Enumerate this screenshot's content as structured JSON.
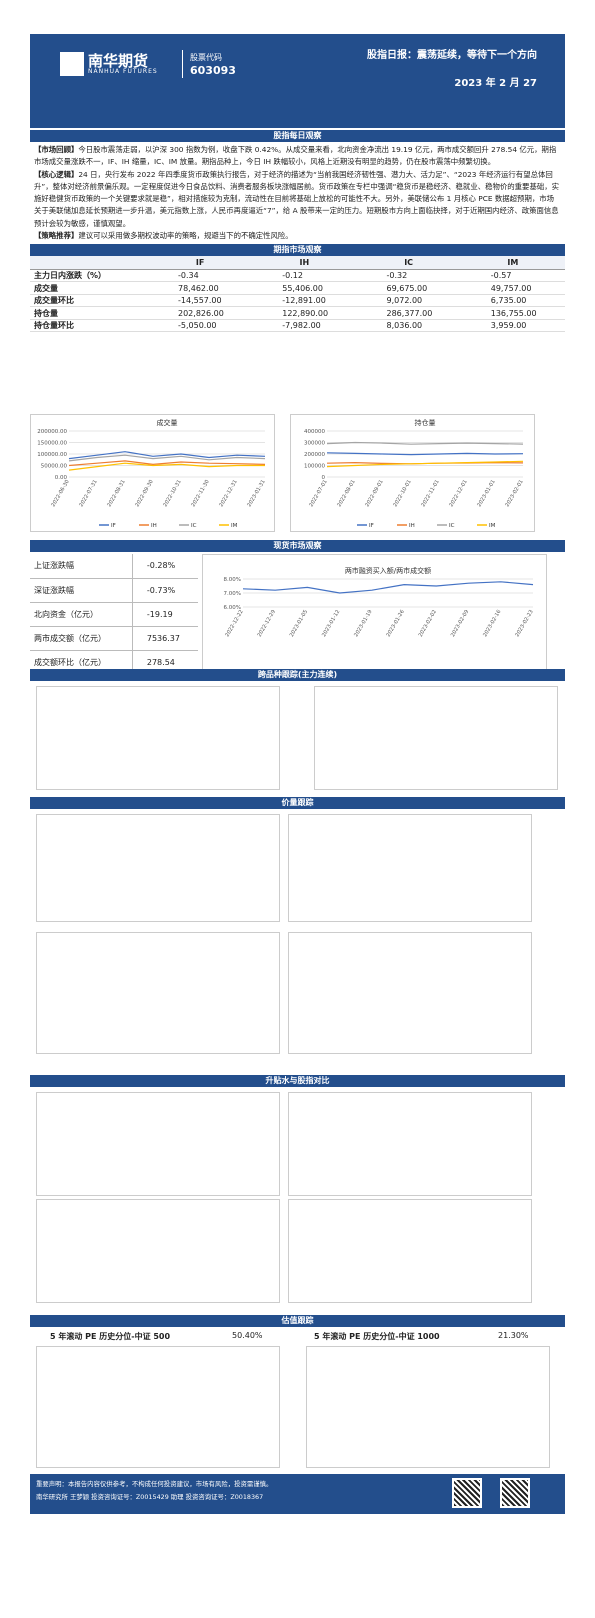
{
  "header": {
    "company_cn": "南华期货",
    "company_en": "NANHUA FUTURES",
    "stock_code_label": "股票代码",
    "stock_code": "603093",
    "report_title": "股指日报：震荡延续，等待下一个方向",
    "report_date": "2023 年 2 月 27"
  },
  "sections": {
    "daily": "股指每日观察",
    "futures": "期指市场观察",
    "spot": "现货市场观察",
    "spread": "跨品种跟踪(主力连续)",
    "volume": "价量跟踪",
    "basis": "升贴水与股指对比",
    "valuation": "估值跟踪"
  },
  "daily": {
    "review_tag": "【市场回顾】",
    "review_text": "今日股市震荡走弱，以沪深 300 指数为例，收盘下跌 0.42%。从成交量来看，北向资金净流出 19.19 亿元，两市成交额回升 278.54 亿元，期指市场成交量涨跌不一，IF、IH 缩量，IC、IM 放量。期指品种上，今日 IH 跌幅较小，风格上近期没有明显的趋势，仍在股市震荡中频繁切换。",
    "core_tag": "【核心逻辑】",
    "core_text": "24 日，央行发布 2022 年四季度货币政策执行报告，对于经济的描述为“当前我国经济韧性强、潜力大、活力足”、“2023 年经济运行有望总体回升”，整体对经济前景偏乐观。一定程度促进今日食品饮料、消费者服务板块涨幅居前。货币政策在专栏中强调“稳货币是稳经济、稳就业、稳物价的重要基础，实施好稳健货币政策的一个关键要求就是稳”，相对措施较为克制，流动性在目前将基础上放松的可能性不大。另外，美联储公布 1 月核心 PCE 数据超预期，市场关于美联储加息延长预期进一步升温，美元指数上涨，人民币再度逼近“7”，给 A 股带来一定的压力。短期股市方向上面临抉择，对于近期国内经济、政策面信息预计会较为敏感，谨慎观望。",
    "strategy_tag": "【策略推荐】",
    "strategy_text": "建议可以采用做多期权波动率的策略，规避当下的不确定性风险。"
  },
  "futures_table": {
    "columns": [
      "",
      "IF",
      "IH",
      "IC",
      "IM"
    ],
    "rows": [
      {
        "label": "主力日内涨跌（%）",
        "values": [
          "-0.34",
          "-0.12",
          "-0.32",
          "-0.57"
        ]
      },
      {
        "label": "成交量",
        "values": [
          "78,462.00",
          "55,406.00",
          "69,675.00",
          "49,757.00"
        ]
      },
      {
        "label": "成交量环比",
        "values": [
          "-14,557.00",
          "-12,891.00",
          "9,072.00",
          "6,735.00"
        ]
      },
      {
        "label": "持仓量",
        "values": [
          "202,826.00",
          "122,890.00",
          "286,377.00",
          "136,755.00"
        ]
      },
      {
        "label": "持仓量环比",
        "values": [
          "-5,050.00",
          "-7,982.00",
          "8,036.00",
          "3,959.00"
        ]
      }
    ]
  },
  "spot_table": {
    "rows": [
      {
        "label": "上证涨跌幅",
        "value": "-0.28%"
      },
      {
        "label": "深证涨跌幅",
        "value": "-0.73%"
      },
      {
        "label": "北向资金（亿元）",
        "value": "-19.19"
      },
      {
        "label": "两市成交额（亿元）",
        "value": "7536.37"
      },
      {
        "label": "成交额环比（亿元）",
        "value": "278.54"
      }
    ]
  },
  "pe": {
    "left_label": "5 年滚动 PE 历史分位-中证 500",
    "left_value": "50.40%",
    "right_label": "5 年滚动 PE 历史分位-中证 1000",
    "right_value": "21.30%"
  },
  "footer": {
    "disclaimer": "重要声明：本报告内容仅供参考，不构成任何投资建议，市场有风险，投资需谨慎。",
    "analyst": "南华研究所 王梦颖 投资咨询证号：Z0015429 助理 投资咨询证号：Z0018367"
  },
  "colors": {
    "brand": "#234e8c",
    "IF": "#4472c4",
    "IH": "#ed7d31",
    "IC": "#a5a5a5",
    "IM": "#ffc000"
  },
  "chart_data": [
    {
      "type": "line",
      "title": "成交量",
      "x": [
        "2022-06-30",
        "2022-07-31",
        "2022-08-31",
        "2022-09-30",
        "2022-10-31",
        "2022-11-30",
        "2022-12-31",
        "2023-01-31"
      ],
      "ylim": [
        0,
        200000
      ],
      "yticks": [
        "200000.00",
        "150000.00",
        "100000.00",
        "50000.00",
        "0.00"
      ],
      "legend": [
        "IF",
        "IH",
        "IC",
        "IM"
      ],
      "series": [
        {
          "name": "IF",
          "values": [
            80000,
            95000,
            110000,
            90000,
            100000,
            85000,
            95000,
            90000
          ]
        },
        {
          "name": "IH",
          "values": [
            50000,
            60000,
            70000,
            55000,
            65000,
            60000,
            58000,
            55000
          ]
        },
        {
          "name": "IC",
          "values": [
            70000,
            85000,
            95000,
            80000,
            90000,
            75000,
            85000,
            80000
          ]
        },
        {
          "name": "IM",
          "values": [
            30000,
            45000,
            60000,
            50000,
            55000,
            45000,
            50000,
            50000
          ]
        }
      ]
    },
    {
      "type": "line",
      "title": "持仓量",
      "x": [
        "2022-07-01",
        "2022-08-01",
        "2022-09-01",
        "2022-10-01",
        "2022-11-01",
        "2022-12-01",
        "2023-01-01",
        "2023-02-01"
      ],
      "ylim": [
        0,
        400000
      ],
      "yticks": [
        "400000",
        "300000",
        "200000",
        "100000",
        "0"
      ],
      "legend": [
        "IF",
        "IH",
        "IC",
        "IM"
      ],
      "series": [
        {
          "name": "IF",
          "values": [
            210000,
            205000,
            200000,
            195000,
            200000,
            205000,
            200000,
            202826
          ]
        },
        {
          "name": "IH",
          "values": [
            120000,
            125000,
            118000,
            115000,
            120000,
            122000,
            125000,
            122890
          ]
        },
        {
          "name": "IC",
          "values": [
            290000,
            300000,
            295000,
            285000,
            290000,
            295000,
            290000,
            286377
          ]
        },
        {
          "name": "IM",
          "values": [
            90000,
            100000,
            110000,
            115000,
            120000,
            125000,
            130000,
            136755
          ]
        }
      ]
    },
    {
      "type": "line",
      "title": "两市融资买入额/两市成交额",
      "x": [
        "2022-12-22",
        "2022-12-29",
        "2023-01-05",
        "2023-01-12",
        "2023-01-19",
        "2023-01-26",
        "2023-02-02",
        "2023-02-09",
        "2023-02-16",
        "2023-02-23"
      ],
      "ylim": [
        6,
        8
      ],
      "yticks": [
        "8.00%",
        "7.00%",
        "6.00%"
      ],
      "series": [
        {
          "name": "",
          "values": [
            7.3,
            7.2,
            7.4,
            7.0,
            7.2,
            7.6,
            7.5,
            7.7,
            7.8,
            7.6
          ]
        }
      ]
    }
  ]
}
